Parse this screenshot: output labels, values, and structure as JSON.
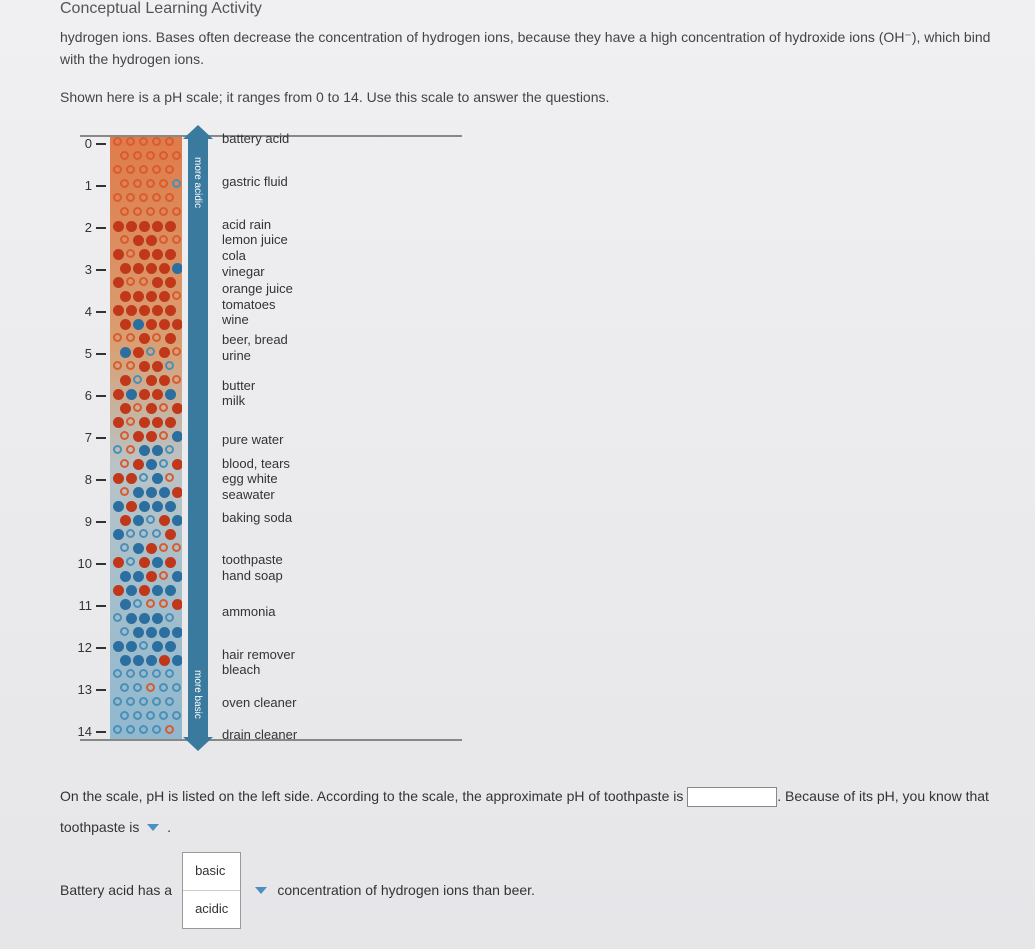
{
  "header": {
    "title": "Conceptual Learning Activity"
  },
  "intro": {
    "line1": "hydrogen ions. Bases often decrease the concentration of hydrogen ions, because they have a high concentration of hydroxide ions (OH⁻), which bind",
    "line2": "with the hydrogen ions."
  },
  "instruction": "Shown here is a pH scale; it ranges from 0 to 14. Use this scale to answer the questions.",
  "scale": {
    "ticks": [
      "0",
      "1",
      "2",
      "3",
      "4",
      "5",
      "6",
      "7",
      "8",
      "9",
      "10",
      "11",
      "12",
      "13",
      "14"
    ],
    "arrow_top_label": "more acidic",
    "arrow_bottom_label": "more basic",
    "colors": {
      "acid_open": "#d95b2e",
      "acid_fill": "#c0371a",
      "base_open": "#4a8fb8",
      "base_fill": "#2a6fa0",
      "bar_top": "#e07b4a",
      "bar_bottom": "#8fb8cf",
      "arrow": "#3a7a9e"
    },
    "examples": [
      {
        "pct": 0,
        "text": "battery acid"
      },
      {
        "pct": 7.1,
        "text": "gastric fluid"
      },
      {
        "pct": 14.3,
        "text": "acid rain\nlemon juice\ncola\nvinegar"
      },
      {
        "pct": 25.0,
        "text": "orange juice\ntomatoes\nwine"
      },
      {
        "pct": 33.5,
        "text": "beer, bread\nurine"
      },
      {
        "pct": 41.0,
        "text": "butter\nmilk"
      },
      {
        "pct": 50.0,
        "text": "pure water"
      },
      {
        "pct": 54.0,
        "text": "blood, tears\negg white\nseawater"
      },
      {
        "pct": 63.0,
        "text": "baking soda"
      },
      {
        "pct": 70.0,
        "text": "toothpaste\nhand soap"
      },
      {
        "pct": 78.6,
        "text": "ammonia"
      },
      {
        "pct": 85.7,
        "text": "hair remover\nbleach"
      },
      {
        "pct": 93.8,
        "text": "oven cleaner"
      },
      {
        "pct": 99.0,
        "text": "drain cleaner"
      }
    ]
  },
  "question1": {
    "part1": "On the scale, pH is listed on the left side. According to the scale, the approximate pH of toothpaste is",
    "part2": ". Because of its pH, you know that",
    "part3": "toothpaste is",
    "part4": "."
  },
  "question2": {
    "part1": "Battery acid has a",
    "options": [
      "basic",
      "acidic"
    ],
    "part2": "concentration of hydrogen ions than beer."
  }
}
